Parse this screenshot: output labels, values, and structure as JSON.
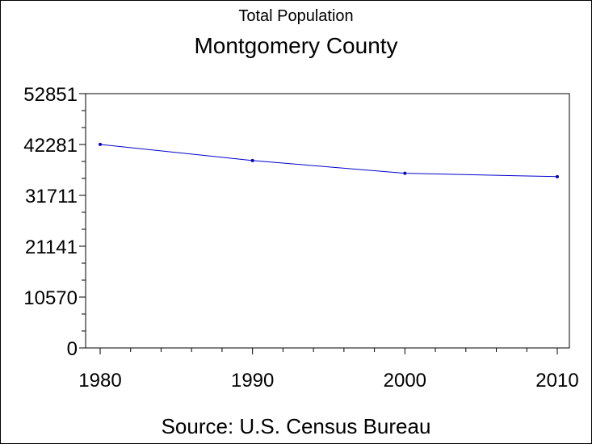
{
  "chart_data": {
    "type": "line",
    "subtitle": "Total Population",
    "title": "Montgomery County",
    "footnote": "Source: U.S. Census Bureau",
    "xlabel": "",
    "ylabel": "",
    "x": [
      1980,
      1990,
      2000,
      2010
    ],
    "x_ticks": [
      "1980",
      "1990",
      "2000",
      "2010"
    ],
    "y_ticks": [
      "0",
      "10570",
      "21141",
      "31711",
      "42281",
      "52851"
    ],
    "ylim": [
      0,
      52851
    ],
    "xlim": [
      1980,
      2010
    ],
    "grid": false,
    "line_color": "#0000cc",
    "series": [
      {
        "values": [
          42300,
          38950,
          36300,
          35600
        ]
      }
    ]
  }
}
